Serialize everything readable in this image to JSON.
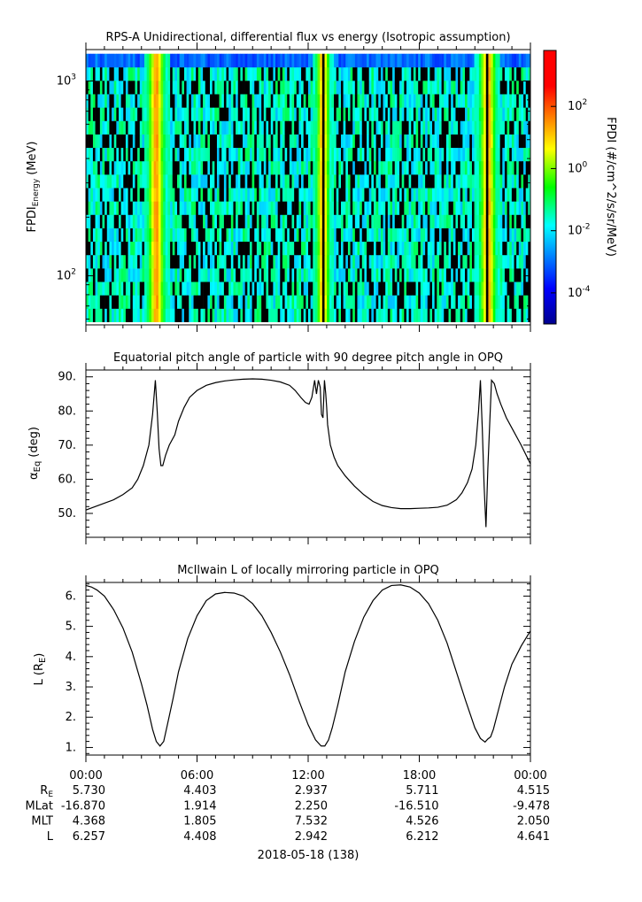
{
  "chart_data": [
    {
      "type": "heatmap",
      "title": "RPS-A Unidirectional, differential flux vs energy (Isotropic assumption)",
      "ylabel": "FPDI",
      "ylabel_sub": "Energy",
      "ylabel_unit": "(MeV)",
      "ylim": [
        56,
        1450
      ],
      "y_log": true,
      "yticks": [
        {
          "value": 100,
          "base": "10",
          "exp": "2"
        },
        {
          "value": 1000,
          "base": "10",
          "exp": "3"
        }
      ],
      "energy_bins_min": 58,
      "energy_bins_max": 1380,
      "energy_bin_count": 20,
      "time_bin_count": 190,
      "bright_bands_hours": [
        3.55,
        4.05,
        12.65,
        12.95,
        21.45,
        21.95
      ],
      "gaps_hours": [
        3.8,
        12.8,
        21.7
      ],
      "colorbar": {
        "label": "FPDI (#/cm^2/s/sr/MeV)",
        "log_min": -5.0,
        "log_max": 3.8,
        "ticks": [
          {
            "value": 2,
            "base": "10",
            "exp": "2"
          },
          {
            "value": 0,
            "base": "10",
            "exp": "0"
          },
          {
            "value": -2,
            "base": "10",
            "exp": "-2"
          },
          {
            "value": -4,
            "base": "10",
            "exp": "-4"
          }
        ]
      }
    },
    {
      "type": "line",
      "title": "Equatorial pitch angle of particle with 90 degree pitch angle in OPQ",
      "ylabel": "α",
      "ylabel_sub": "Eq",
      "ylabel_unit": "(deg)",
      "ylim": [
        43,
        92
      ],
      "yticks": [
        {
          "value": 50,
          "label": "50."
        },
        {
          "value": 60,
          "label": "60."
        },
        {
          "value": 70,
          "label": "70."
        },
        {
          "value": 80,
          "label": "80."
        },
        {
          "value": 90,
          "label": "90."
        }
      ],
      "series": [
        {
          "x": [
            0,
            0.5,
            1,
            1.5,
            2,
            2.5,
            2.8,
            3.1,
            3.4,
            3.6,
            3.75,
            3.85,
            3.95,
            4.05,
            4.15,
            4.3,
            4.5,
            4.8,
            5.0,
            5.3,
            5.6,
            6.0,
            6.5,
            7.0,
            7.5,
            8.0,
            8.5,
            9.0,
            9.5,
            10.0,
            10.5,
            11.0,
            11.3,
            11.6,
            11.85,
            12.05,
            12.2,
            12.35,
            12.45,
            12.55,
            12.65,
            12.72,
            12.8,
            12.88,
            12.95,
            13.0,
            13.05,
            13.2,
            13.4,
            13.6,
            14.0,
            14.5,
            15.0,
            15.5,
            16.0,
            16.5,
            17.0,
            17.5,
            18.0,
            18.5,
            19.0,
            19.5,
            20.0,
            20.3,
            20.6,
            20.85,
            21.05,
            21.2,
            21.3,
            21.4,
            21.5,
            21.6,
            21.7,
            21.8,
            21.9,
            22.05,
            22.2,
            22.4,
            22.7,
            23.0,
            23.5,
            24.0
          ],
          "y": [
            51,
            52,
            53,
            54,
            55.5,
            57.5,
            60,
            64,
            70,
            79,
            89,
            80,
            69,
            64,
            64,
            67,
            70,
            73,
            77,
            81,
            84,
            86,
            87.5,
            88.3,
            88.8,
            89.1,
            89.3,
            89.4,
            89.3,
            89,
            88.5,
            87.5,
            86,
            84,
            82.5,
            82,
            84,
            89,
            85,
            89,
            87,
            79,
            78,
            89,
            85,
            81,
            76,
            70,
            66.5,
            64,
            61,
            58,
            55.5,
            53.5,
            52.3,
            51.7,
            51.4,
            51.4,
            51.5,
            51.6,
            51.8,
            52.4,
            54,
            56,
            59,
            63,
            70,
            80,
            89,
            75,
            58,
            46,
            63,
            76,
            89,
            88,
            85,
            82,
            78,
            75,
            70,
            64.5
          ]
        }
      ]
    },
    {
      "type": "line",
      "title": "McIlwain L of locally mirroring particle in OPQ",
      "ylabel": "L",
      "ylabel_unit_base": "(R",
      "ylabel_unit_sub": "E",
      "ylabel_unit_end": ")",
      "ylim": [
        0.75,
        6.45
      ],
      "yticks": [
        {
          "value": 1,
          "label": "1."
        },
        {
          "value": 2,
          "label": "2."
        },
        {
          "value": 3,
          "label": "3."
        },
        {
          "value": 4,
          "label": "4."
        },
        {
          "value": 5,
          "label": "5."
        },
        {
          "value": 6,
          "label": "6."
        }
      ],
      "series": [
        {
          "x": [
            0,
            0.3,
            0.6,
            1.0,
            1.5,
            2.0,
            2.5,
            3.0,
            3.3,
            3.6,
            3.8,
            4.0,
            4.2,
            4.4,
            4.7,
            5.0,
            5.5,
            6.0,
            6.5,
            7.0,
            7.5,
            8.0,
            8.5,
            9.0,
            9.5,
            10.0,
            10.5,
            11.0,
            11.5,
            12.0,
            12.4,
            12.7,
            12.9,
            13.1,
            13.3,
            13.6,
            14.0,
            14.5,
            15.0,
            15.5,
            16.0,
            16.5,
            17.0,
            17.5,
            18.0,
            18.5,
            19.0,
            19.5,
            20.0,
            20.5,
            21.0,
            21.3,
            21.55,
            21.7,
            21.85,
            22.0,
            22.3,
            22.6,
            23.0,
            23.5,
            24.0
          ],
          "y": [
            6.35,
            6.3,
            6.2,
            6.0,
            5.55,
            4.95,
            4.15,
            3.1,
            2.4,
            1.6,
            1.2,
            1.05,
            1.2,
            1.75,
            2.6,
            3.5,
            4.6,
            5.35,
            5.85,
            6.07,
            6.12,
            6.1,
            6.0,
            5.75,
            5.35,
            4.8,
            4.15,
            3.4,
            2.55,
            1.75,
            1.25,
            1.05,
            1.05,
            1.25,
            1.65,
            2.4,
            3.5,
            4.5,
            5.3,
            5.85,
            6.2,
            6.35,
            6.37,
            6.3,
            6.1,
            5.75,
            5.2,
            4.45,
            3.5,
            2.55,
            1.65,
            1.3,
            1.18,
            1.28,
            1.35,
            1.6,
            2.3,
            3.0,
            3.75,
            4.35,
            4.85
          ]
        }
      ]
    }
  ],
  "time_axis": {
    "tick_labels": [
      "00:00",
      "06:00",
      "12:00",
      "18:00",
      "00:00"
    ],
    "major_hours": [
      0,
      6,
      12,
      18,
      24
    ],
    "minor_step_hours": 1,
    "date_label": "2018-05-18 (138)"
  },
  "ephemeris": {
    "rows": [
      {
        "name_base": "R",
        "name_sub": "E",
        "name": "R_E",
        "values": [
          "5.730",
          "4.403",
          "2.937",
          "5.711",
          "4.515"
        ]
      },
      {
        "name": "MLat",
        "values": [
          "-16.870",
          "1.914",
          "2.250",
          "-16.510",
          "-9.478"
        ]
      },
      {
        "name": "MLT",
        "values": [
          "4.368",
          "1.805",
          "7.532",
          "4.526",
          "2.050"
        ]
      },
      {
        "name": "L",
        "values": [
          "6.257",
          "4.408",
          "2.942",
          "6.212",
          "4.641"
        ]
      }
    ]
  }
}
